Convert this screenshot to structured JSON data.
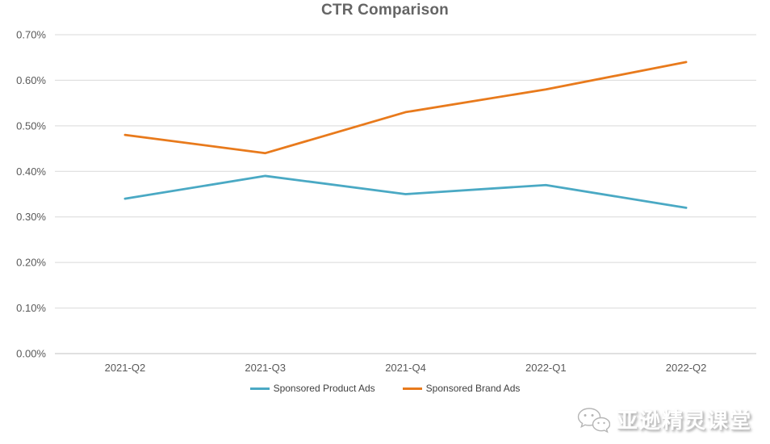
{
  "chart_data": {
    "type": "line",
    "title": "CTR Comparison",
    "categories": [
      "2021-Q2",
      "2021-Q3",
      "2021-Q4",
      "2022-Q1",
      "2022-Q2"
    ],
    "series": [
      {
        "name": "Sponsored Product Ads",
        "color": "#4AA9C4",
        "values": [
          0.34,
          0.39,
          0.35,
          0.37,
          0.32
        ]
      },
      {
        "name": "Sponsored Brand Ads",
        "color": "#E87A1C",
        "values": [
          0.48,
          0.44,
          0.53,
          0.58,
          0.64
        ]
      }
    ],
    "y_axis": {
      "min": 0.0,
      "max": 0.7,
      "step": 0.1,
      "tick_labels": [
        "0.00%",
        "0.10%",
        "0.20%",
        "0.30%",
        "0.40%",
        "0.50%",
        "0.60%",
        "0.70%"
      ],
      "unit": "percent"
    },
    "xlabel": "",
    "ylabel": "",
    "grid": true,
    "legend_position": "bottom",
    "colors": {
      "gridline": "#D9D9D9",
      "axis_line": "#C0C0C0",
      "tick_label": "#595959",
      "title": "#656565",
      "legend_text": "#3f3f3f"
    }
  },
  "watermark": {
    "text": "亚逊精灵课堂",
    "icon": "wechat-icon"
  }
}
